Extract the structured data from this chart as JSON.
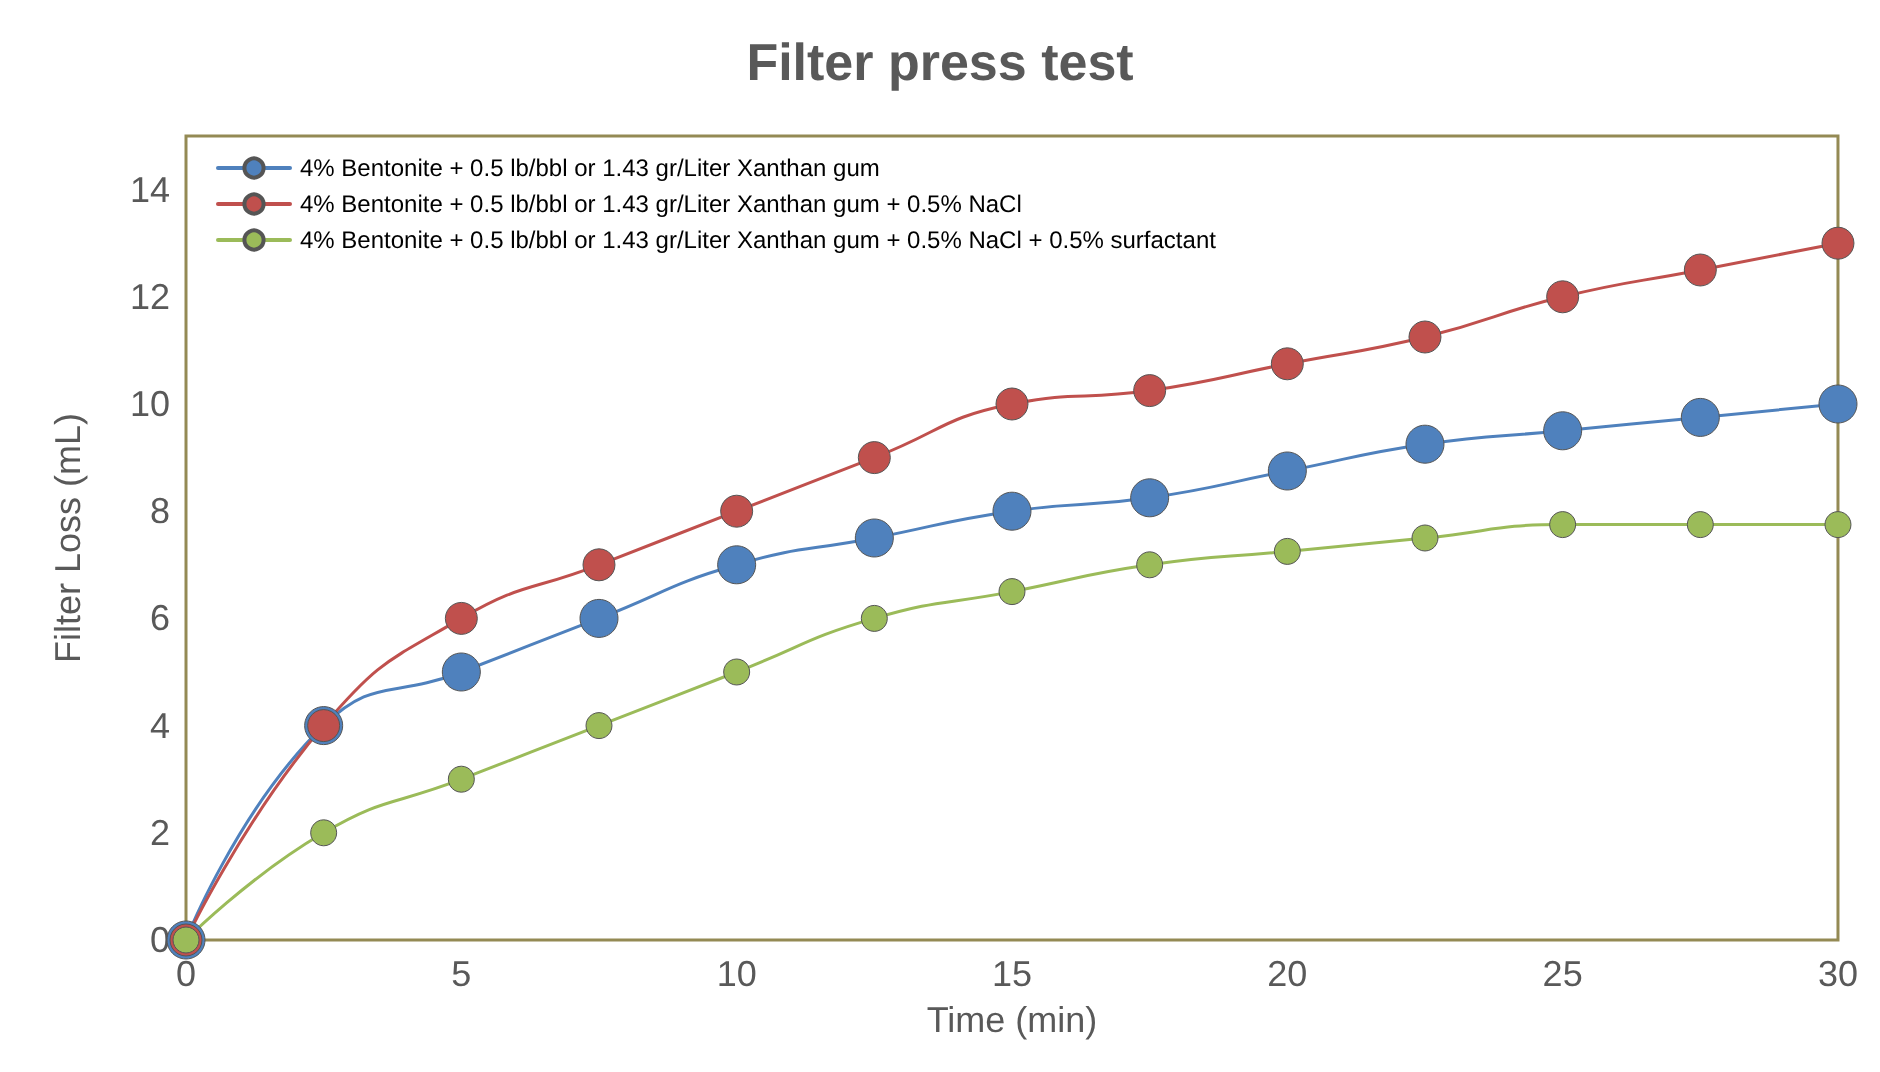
{
  "chart_data": {
    "type": "line",
    "title": "Filter press test",
    "xlabel": "Time (min)",
    "ylabel": "Filter Loss (mL)",
    "x": [
      0,
      2.5,
      5,
      7.5,
      10,
      12.5,
      15,
      17.5,
      20,
      22.5,
      25,
      27.5,
      30
    ],
    "series": [
      {
        "name": "4% Bentonite + 0.5 lb/bbl or 1.43 gr/Liter Xanthan gum",
        "color": "#4f81bd",
        "values": [
          0,
          4,
          5,
          6,
          7,
          7.5,
          8,
          8.25,
          8.75,
          9.25,
          9.5,
          9.75,
          10
        ]
      },
      {
        "name": "4% Bentonite + 0.5 lb/bbl or 1.43 gr/Liter Xanthan gum + 0.5% NaCl",
        "color": "#c0504d",
        "values": [
          0,
          4,
          6,
          7,
          8,
          9,
          10,
          10.25,
          10.75,
          11.25,
          12,
          12.5,
          13
        ]
      },
      {
        "name": "4% Bentonite + 0.5 lb/bbl or 1.43 gr/Liter Xanthan gum + 0.5% NaCl + 0.5% surfactant",
        "color": "#9bbb59",
        "values": [
          0,
          2,
          3,
          4,
          5,
          6,
          6.5,
          7,
          7.25,
          7.5,
          7.75,
          7.75,
          7.75
        ]
      }
    ],
    "xlim": [
      0,
      30
    ],
    "xticks": [
      0,
      5,
      10,
      15,
      20,
      25,
      30
    ],
    "ylim": [
      0,
      15
    ],
    "yticks": [
      0,
      2,
      4,
      6,
      8,
      10,
      12,
      14
    ],
    "grid": false,
    "legend": "top left",
    "marker": "circle",
    "line_style": "solid"
  }
}
